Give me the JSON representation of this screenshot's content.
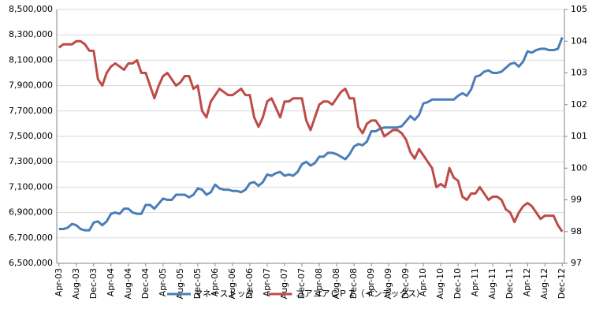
{
  "chart_data": {
    "type": "line",
    "categories": [
      "Apr-03",
      null,
      null,
      null,
      "Aug-03",
      null,
      null,
      null,
      "Dec-03",
      null,
      null,
      null,
      "Apr-04",
      null,
      null,
      null,
      "Aug-04",
      null,
      null,
      null,
      "Dec-04",
      null,
      null,
      null,
      "Apr-05",
      null,
      null,
      null,
      "Aug-05",
      null,
      null,
      null,
      "Dec-05",
      null,
      null,
      null,
      "Apr-06",
      null,
      null,
      null,
      "Aug-06",
      null,
      null,
      null,
      "Dec-06",
      null,
      null,
      null,
      "Apr-07",
      null,
      null,
      null,
      "Aug-07",
      null,
      null,
      null,
      "Dec-07",
      null,
      null,
      null,
      "Apr-08",
      null,
      null,
      null,
      "Aug-08",
      null,
      null,
      null,
      "Dec-08",
      null,
      null,
      null,
      "Apr-09",
      null,
      null,
      null,
      "Aug-09",
      null,
      null,
      null,
      "Dec-09",
      null,
      null,
      null,
      "Apr-10",
      null,
      null,
      null,
      "Aug-10",
      null,
      null,
      null,
      "Dec-10",
      null,
      null,
      null,
      "Apr-11",
      null,
      null,
      null,
      "Aug-11",
      null,
      null,
      null,
      "Dec-11",
      null,
      null,
      null,
      "Apr-12",
      null,
      null,
      null,
      "Aug-12",
      null,
      null,
      null,
      "Dec-12"
    ],
    "series": [
      {
        "name": "マネーストック",
        "color": "#4a7ebb",
        "values": [
          6770000,
          6770000,
          6780000,
          6810000,
          6800000,
          6770000,
          6760000,
          6760000,
          6820000,
          6830000,
          6800000,
          6830000,
          6890000,
          6900000,
          6890000,
          6930000,
          6930000,
          6900000,
          6890000,
          6890000,
          6960000,
          6960000,
          6930000,
          6970000,
          7010000,
          7000000,
          7000000,
          7040000,
          7040000,
          7040000,
          7020000,
          7040000,
          7090000,
          7080000,
          7040000,
          7060000,
          7120000,
          7090000,
          7080000,
          7080000,
          7070000,
          7070000,
          7060000,
          7080000,
          7130000,
          7140000,
          7110000,
          7140000,
          7200000,
          7190000,
          7210000,
          7220000,
          7190000,
          7200000,
          7190000,
          7220000,
          7280000,
          7300000,
          7270000,
          7290000,
          7340000,
          7340000,
          7370000,
          7370000,
          7360000,
          7340000,
          7320000,
          7360000,
          7420000,
          7440000,
          7430000,
          7460000,
          7540000,
          7540000,
          7560000,
          7570000,
          7570000,
          7570000,
          7570000,
          7580000,
          7620000,
          7660000,
          7630000,
          7670000,
          7760000,
          7770000,
          7790000,
          7790000,
          7790000,
          7790000,
          7790000,
          7790000,
          7820000,
          7840000,
          7820000,
          7870000,
          7970000,
          7980000,
          8010000,
          8020000,
          8000000,
          8000000,
          8010000,
          8040000,
          8070000,
          8080000,
          8050000,
          8090000,
          8170000,
          8160000,
          8180000,
          8190000,
          8190000,
          8180000,
          8180000,
          8190000,
          8280000
        ]
      },
      {
        "name": "コアコアＣＰＩ（インデックス）",
        "color": "#be4b48",
        "axis": "y2",
        "values": [
          103.8,
          103.9,
          103.9,
          103.9,
          104.0,
          104.0,
          103.9,
          103.7,
          103.7,
          102.8,
          102.6,
          103.0,
          103.2,
          103.3,
          103.2,
          103.1,
          103.3,
          103.3,
          103.4,
          103.0,
          103.0,
          102.6,
          102.2,
          102.6,
          102.9,
          103.0,
          102.8,
          102.6,
          102.7,
          102.9,
          102.9,
          102.5,
          102.6,
          101.8,
          101.6,
          102.1,
          102.3,
          102.5,
          102.4,
          102.3,
          102.3,
          102.4,
          102.5,
          102.3,
          102.3,
          101.6,
          101.3,
          101.6,
          102.1,
          102.2,
          101.9,
          101.6,
          102.1,
          102.1,
          102.2,
          102.2,
          102.2,
          101.5,
          101.2,
          101.6,
          102.0,
          102.1,
          102.1,
          102.0,
          102.2,
          102.4,
          102.5,
          102.2,
          102.2,
          101.3,
          101.1,
          101.4,
          101.5,
          101.5,
          101.3,
          101.0,
          101.1,
          101.2,
          101.2,
          101.1,
          100.9,
          100.5,
          100.3,
          100.6,
          100.4,
          100.2,
          100.0,
          99.4,
          99.5,
          99.4,
          100.0,
          99.7,
          99.6,
          99.1,
          99.0,
          99.2,
          99.2,
          99.4,
          99.2,
          99.0,
          99.1,
          99.1,
          99.0,
          98.7,
          98.6,
          98.3,
          98.6,
          98.8,
          98.9,
          98.8,
          98.6,
          98.4,
          98.5,
          98.5,
          98.5,
          98.2,
          98.0
        ]
      }
    ],
    "ylim": [
      6500000,
      8500000
    ],
    "yticks": [
      {
        "value": 6500000,
        "label": "6,500,000"
      },
      {
        "value": 6700000,
        "label": "6,700,000"
      },
      {
        "value": 6900000,
        "label": "6,900,000"
      },
      {
        "value": 7100000,
        "label": "7,100,000"
      },
      {
        "value": 7300000,
        "label": "7,300,000"
      },
      {
        "value": 7500000,
        "label": "7,500,000"
      },
      {
        "value": 7700000,
        "label": "7,700,000"
      },
      {
        "value": 7900000,
        "label": "7,900,000"
      },
      {
        "value": 8100000,
        "label": "8,100,000"
      },
      {
        "value": 8300000,
        "label": "8,300,000"
      },
      {
        "value": 8500000,
        "label": "8,500,000"
      }
    ],
    "y2lim": [
      97,
      105
    ],
    "y2ticks": [
      97,
      98,
      99,
      100,
      101,
      102,
      103,
      104,
      105
    ],
    "grid": true,
    "legend": "bottom"
  }
}
